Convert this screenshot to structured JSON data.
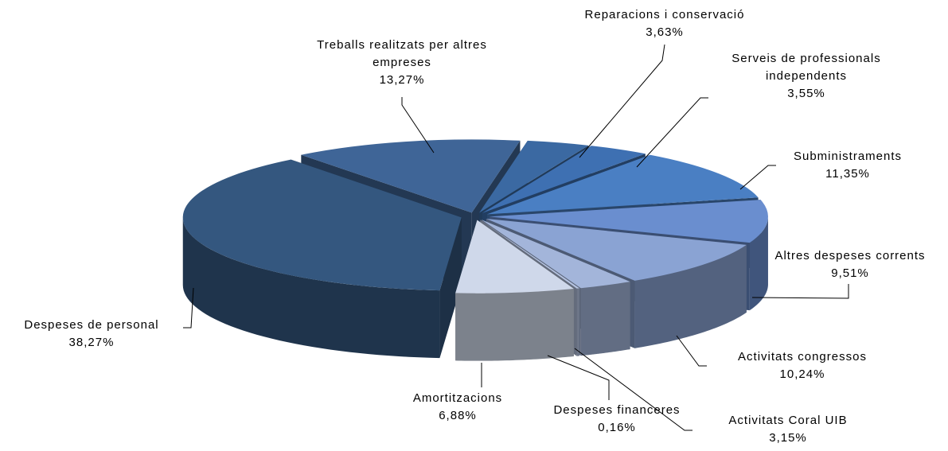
{
  "chart_data": {
    "type": "pie",
    "categories": [
      "Reparacions i conservació",
      "Serveis de professionals independents",
      "Subministraments",
      "Altres despeses corrents",
      "Activitats congressos",
      "Activitats Coral UIB",
      "Despeses financeres",
      "Amortitzacions",
      "Despeses de personal",
      "Treballs realitzats per altres empreses"
    ],
    "values": [
      3.63,
      3.55,
      11.35,
      9.51,
      10.24,
      3.15,
      0.16,
      6.88,
      38.27,
      13.27
    ],
    "value_labels": [
      "3,63%",
      "3,55%",
      "11,35%",
      "9,51%",
      "10,24%",
      "3,15%",
      "0,16%",
      "6,88%",
      "38,27%",
      "13,27%"
    ],
    "colors": [
      "#3b69a2",
      "#3e70b2",
      "#4a7fc3",
      "#6a8ecf",
      "#8aa3d3",
      "#a3b5da",
      "#b6c4e2",
      "#cfd8ea",
      "#34577f",
      "#3f6597"
    ]
  }
}
